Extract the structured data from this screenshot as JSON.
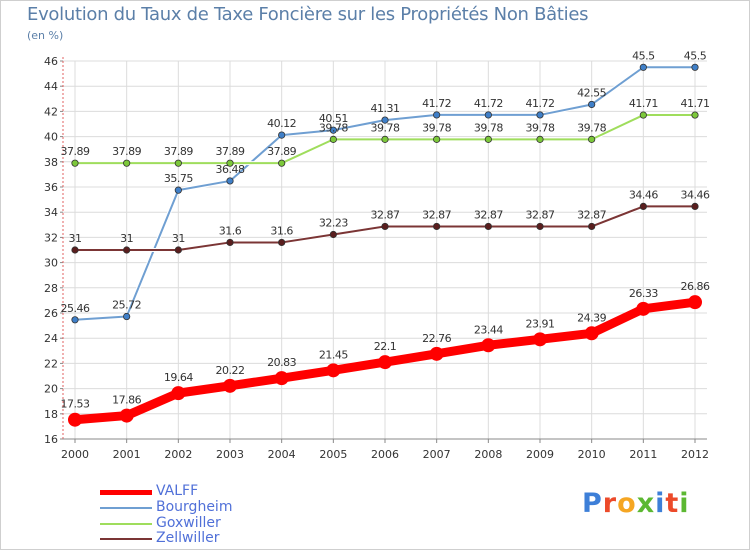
{
  "title": "Evolution du Taux de Taxe Foncière sur les Propriétés Non Bâties",
  "unit_label": "(en %)",
  "logo_text": "Proxiti",
  "chart_data": {
    "type": "line",
    "title": "Evolution du Taux de Taxe Foncière sur les Propriétés Non Bâties",
    "ylabel": "(en %)",
    "xlabel": "",
    "grid": true,
    "legend_position": "bottom-left",
    "ylim": [
      16,
      46
    ],
    "yticks": [
      16,
      18,
      20,
      22,
      24,
      26,
      28,
      30,
      32,
      34,
      36,
      38,
      40,
      42,
      44,
      46
    ],
    "categories": [
      "2000",
      "2001",
      "2002",
      "2003",
      "2004",
      "2005",
      "2006",
      "2007",
      "2008",
      "2009",
      "2010",
      "2011",
      "2012"
    ],
    "series": [
      {
        "name": "Bourgheim",
        "color": "#6f9fd2",
        "marker": "#3f7fc8",
        "labels": [
          "25.46",
          "25.72",
          "35.75",
          "36.48",
          "40.12",
          "40.51",
          "41.31",
          "41.72",
          "41.72",
          "41.72",
          "42.55",
          "45.5",
          "45.5"
        ],
        "values": [
          25.46,
          25.72,
          35.75,
          36.48,
          40.12,
          40.51,
          41.31,
          41.72,
          41.72,
          41.72,
          42.55,
          45.5,
          45.5
        ]
      },
      {
        "name": "Goxwiller",
        "color": "#9fdd5c",
        "marker": "#7cc83a",
        "labels": [
          "37.89",
          "37.89",
          "37.89",
          "37.89",
          "37.89",
          "39.78",
          "39.78",
          "39.78",
          "39.78",
          "39.78",
          "39.78",
          "41.71",
          "41.71"
        ],
        "values": [
          37.89,
          37.89,
          37.89,
          37.89,
          37.89,
          39.78,
          39.78,
          39.78,
          39.78,
          39.78,
          39.78,
          41.71,
          41.71
        ]
      },
      {
        "name": "Zellwiller",
        "color": "#7b3535",
        "marker": "#5a1e1e",
        "labels": [
          "31",
          "31",
          "31",
          "31.6",
          "31.6",
          "32.23",
          "32.87",
          "32.87",
          "32.87",
          "32.87",
          "32.87",
          "34.46",
          "34.46"
        ],
        "values": [
          31,
          31,
          31,
          31.6,
          31.6,
          32.23,
          32.87,
          32.87,
          32.87,
          32.87,
          32.87,
          34.46,
          34.46
        ]
      },
      {
        "name": "VALFF",
        "color": "#ff0000",
        "marker": "#ff0000",
        "labels": [
          "17.53",
          "17.86",
          "19.64",
          "20.22",
          "20.83",
          "21.45",
          "22.1",
          "22.76",
          "23.44",
          "23.91",
          "24.39",
          "26.33",
          "26.86"
        ],
        "values": [
          17.53,
          17.86,
          19.64,
          20.22,
          20.83,
          21.45,
          22.1,
          22.76,
          23.44,
          23.91,
          24.39,
          26.33,
          26.86
        ]
      }
    ],
    "legend": [
      {
        "name": "VALFF",
        "color": "#ff0000"
      },
      {
        "name": "Bourgheim",
        "color": "#6f9fd2"
      },
      {
        "name": "Goxwiller",
        "color": "#9fdd5c"
      },
      {
        "name": "Zellwiller",
        "color": "#7b3535"
      }
    ]
  }
}
